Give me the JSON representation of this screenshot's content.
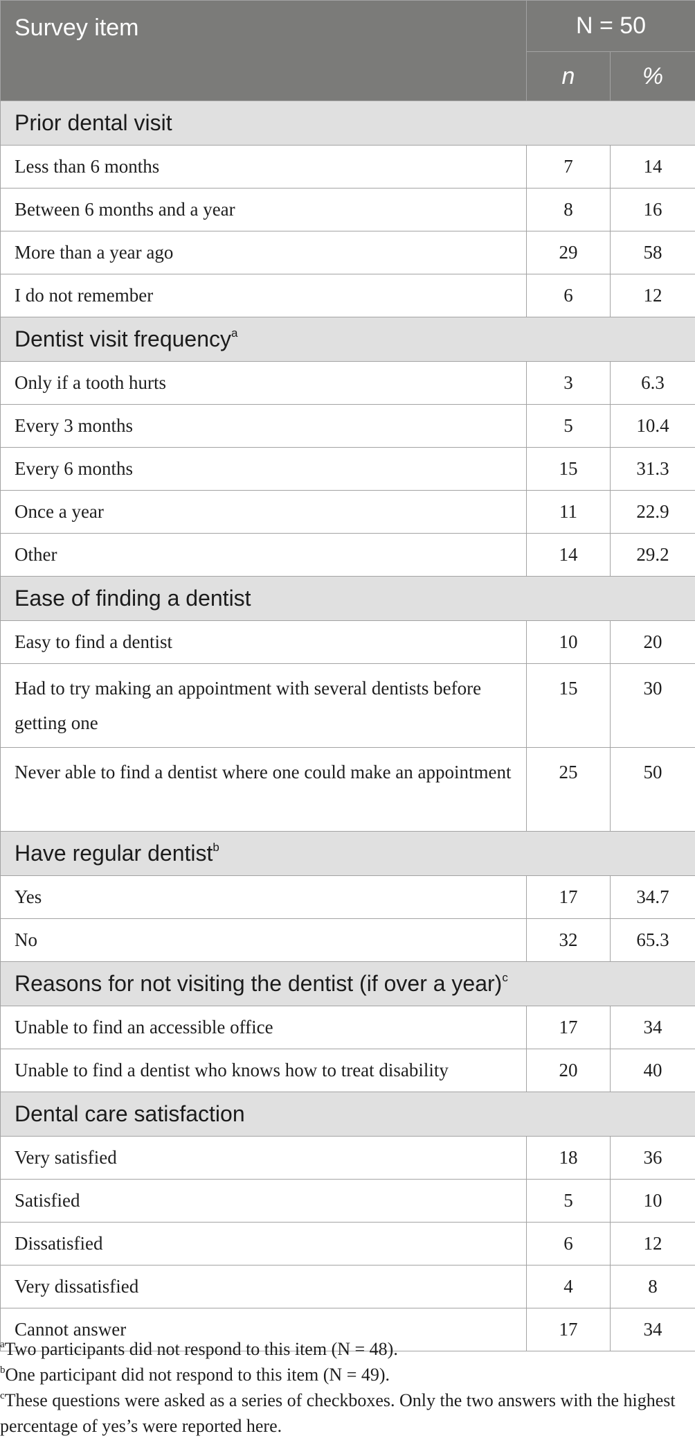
{
  "header": {
    "item_label": "Survey item",
    "n_total_label": "N = 50",
    "n_col": "n",
    "pct_col": "%"
  },
  "sections": [
    {
      "title": "Prior dental visit",
      "note": "",
      "rows": [
        {
          "item": "Less than 6 months",
          "n": "7",
          "pct": "14"
        },
        {
          "item": "Between 6 months and a year",
          "n": "8",
          "pct": "16"
        },
        {
          "item": "More than a year ago",
          "n": "29",
          "pct": "58"
        },
        {
          "item": "I do not remember",
          "n": "6",
          "pct": "12"
        }
      ]
    },
    {
      "title": "Dentist visit frequency",
      "note": "a",
      "rows": [
        {
          "item": "Only if a tooth hurts",
          "n": "3",
          "pct": "6.3"
        },
        {
          "item": "Every 3 months",
          "n": "5",
          "pct": "10.4"
        },
        {
          "item": "Every 6 months",
          "n": "15",
          "pct": "31.3"
        },
        {
          "item": "Once a year",
          "n": "11",
          "pct": "22.9"
        },
        {
          "item": "Other",
          "n": "14",
          "pct": "29.2"
        }
      ]
    },
    {
      "title": "Ease of finding a dentist",
      "note": "",
      "rows": [
        {
          "item": "Easy to find a dentist",
          "n": "10",
          "pct": "20"
        },
        {
          "item": "Had to try making an appointment with several dentists before getting one",
          "n": "15",
          "pct": "30"
        },
        {
          "item": "Never able to find a dentist where one could make an appointment",
          "n": "25",
          "pct": "50"
        }
      ]
    },
    {
      "title": "Have regular dentist",
      "note": "b",
      "rows": [
        {
          "item": "Yes",
          "n": "17",
          "pct": "34.7"
        },
        {
          "item": "No",
          "n": "32",
          "pct": "65.3"
        }
      ]
    },
    {
      "title": "Reasons for not visiting the dentist (if over a year)",
      "note": "c",
      "rows": [
        {
          "item": "Unable to find an accessible office",
          "n": "17",
          "pct": "34"
        },
        {
          "item": "Unable to find a dentist who knows how to treat disability",
          "n": "20",
          "pct": "40"
        }
      ]
    },
    {
      "title": "Dental care satisfaction",
      "note": "",
      "rows": [
        {
          "item": "Very satisfied",
          "n": "18",
          "pct": "36"
        },
        {
          "item": "Satisfied",
          "n": "5",
          "pct": "10"
        },
        {
          "item": "Dissatisfied",
          "n": "6",
          "pct": "12"
        },
        {
          "item": "Very dissatisfied",
          "n": "4",
          "pct": "8"
        },
        {
          "item": "Cannot answer",
          "n": "17",
          "pct": "34"
        }
      ]
    }
  ],
  "footnotes": [
    {
      "mark": "a",
      "text": "Two participants did not respond to this item (N = 48)."
    },
    {
      "mark": "b",
      "text": "One participant did not respond to this item (N = 49)."
    },
    {
      "mark": "c",
      "text": "These questions were asked as a series of checkboxes. Only the two answers with the highest percentage of yes’s were reported here."
    }
  ]
}
